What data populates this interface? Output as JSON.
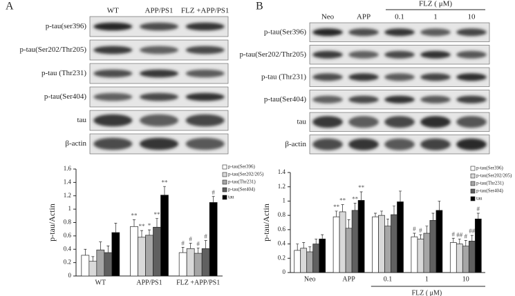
{
  "panels": [
    {
      "letter": "A",
      "lanes": [
        "WT",
        "APP/PS1",
        "FLZ +APP/PS1"
      ],
      "rows": [
        "p-tau(ser396)",
        "p-tau(Ser202/Thr205)",
        "p-tau (Thr231)",
        "p-tau(Ser404)",
        "tau",
        "β-actin"
      ]
    },
    {
      "letter": "B",
      "lanes": [
        "Neo",
        "APP",
        "0.1",
        "1",
        "10"
      ],
      "header": "FLZ ( μM)",
      "rows": [
        "p-tau(Ser396)",
        "p-tau(Ser202/Thr205)",
        "p-tau (Thr231)",
        "p-tau(Ser404)",
        "tau",
        "β-actin"
      ]
    }
  ],
  "chart_data": [
    {
      "type": "bar",
      "ylabel": "p-tau/Actin",
      "categories": [
        "WT",
        "APP/PS1",
        "FLZ +APP/PS1"
      ],
      "ylim": [
        0,
        1.6
      ],
      "yticks": [
        0,
        0.2,
        0.4,
        0.6,
        0.8,
        1,
        1.2,
        1.4,
        1.6
      ],
      "series": [
        {
          "name": "p-tau(Ser396)",
          "color": "#ffffff",
          "values": [
            0.31,
            0.74,
            0.35
          ],
          "errors": [
            0.09,
            0.1,
            0.08
          ],
          "marks": [
            null,
            "**",
            "#"
          ]
        },
        {
          "name": "p-tau(Ser202/205)",
          "color": "#d9d9d9",
          "values": [
            0.22,
            0.58,
            0.41
          ],
          "errors": [
            0.07,
            0.1,
            0.08
          ],
          "marks": [
            null,
            "**",
            "#"
          ]
        },
        {
          "name": "p-tau(Thr231)",
          "color": "#a6a6a6",
          "values": [
            0.39,
            0.61,
            0.34
          ],
          "errors": [
            0.12,
            0.08,
            0.08
          ],
          "marks": [
            null,
            "*",
            "#"
          ]
        },
        {
          "name": "p-tau(Ser404)",
          "color": "#606060",
          "values": [
            0.35,
            0.73,
            0.41
          ],
          "errors": [
            0.1,
            0.13,
            0.12
          ],
          "marks": [
            null,
            "**",
            "#"
          ]
        },
        {
          "name": "tau",
          "color": "#000000",
          "values": [
            0.65,
            1.21,
            1.1
          ],
          "errors": [
            0.14,
            0.13,
            0.09
          ],
          "marks": [
            null,
            "**",
            "#"
          ]
        }
      ]
    },
    {
      "type": "bar",
      "ylabel": "p-tau/Actin",
      "categories": [
        "Neo",
        "APP",
        "0.1",
        "1",
        "10"
      ],
      "group_label": "FLZ ( μM)",
      "ylim": [
        0,
        1.4
      ],
      "yticks": [
        0,
        0.2,
        0.4,
        0.6,
        0.8,
        1,
        1.2,
        1.4
      ],
      "series": [
        {
          "name": "p-tau(Ser396)",
          "color": "#ffffff",
          "values": [
            0.31,
            0.78,
            0.78,
            0.5,
            0.42
          ],
          "errors": [
            0.09,
            0.08,
            0.05,
            0.05,
            0.06
          ],
          "marks": [
            null,
            "**",
            null,
            "#",
            "#"
          ]
        },
        {
          "name": "p-tau(Ser202/205)",
          "color": "#d9d9d9",
          "values": [
            0.34,
            0.85,
            0.8,
            0.47,
            0.4
          ],
          "errors": [
            0.08,
            0.1,
            0.06,
            0.06,
            0.07
          ],
          "marks": [
            null,
            "**",
            null,
            "#",
            "##"
          ]
        },
        {
          "name": "p-tau(Thr231)",
          "color": "#a6a6a6",
          "values": [
            0.29,
            0.62,
            0.65,
            0.55,
            0.37
          ],
          "errors": [
            0.07,
            0.12,
            0.1,
            0.1,
            0.08
          ],
          "marks": [
            null,
            null,
            null,
            null,
            "#"
          ]
        },
        {
          "name": "p-tau(Ser404)",
          "color": "#606060",
          "values": [
            0.4,
            0.87,
            0.81,
            0.73,
            0.44
          ],
          "errors": [
            0.07,
            0.1,
            0.12,
            0.1,
            0.08
          ],
          "marks": [
            null,
            "**",
            null,
            null,
            "##"
          ]
        },
        {
          "name": "tau",
          "color": "#000000",
          "values": [
            0.47,
            1.01,
            0.99,
            0.87,
            0.75
          ],
          "errors": [
            0.06,
            0.12,
            0.15,
            0.13,
            0.08
          ],
          "marks": [
            null,
            "**",
            null,
            null,
            "#"
          ]
        }
      ]
    }
  ]
}
